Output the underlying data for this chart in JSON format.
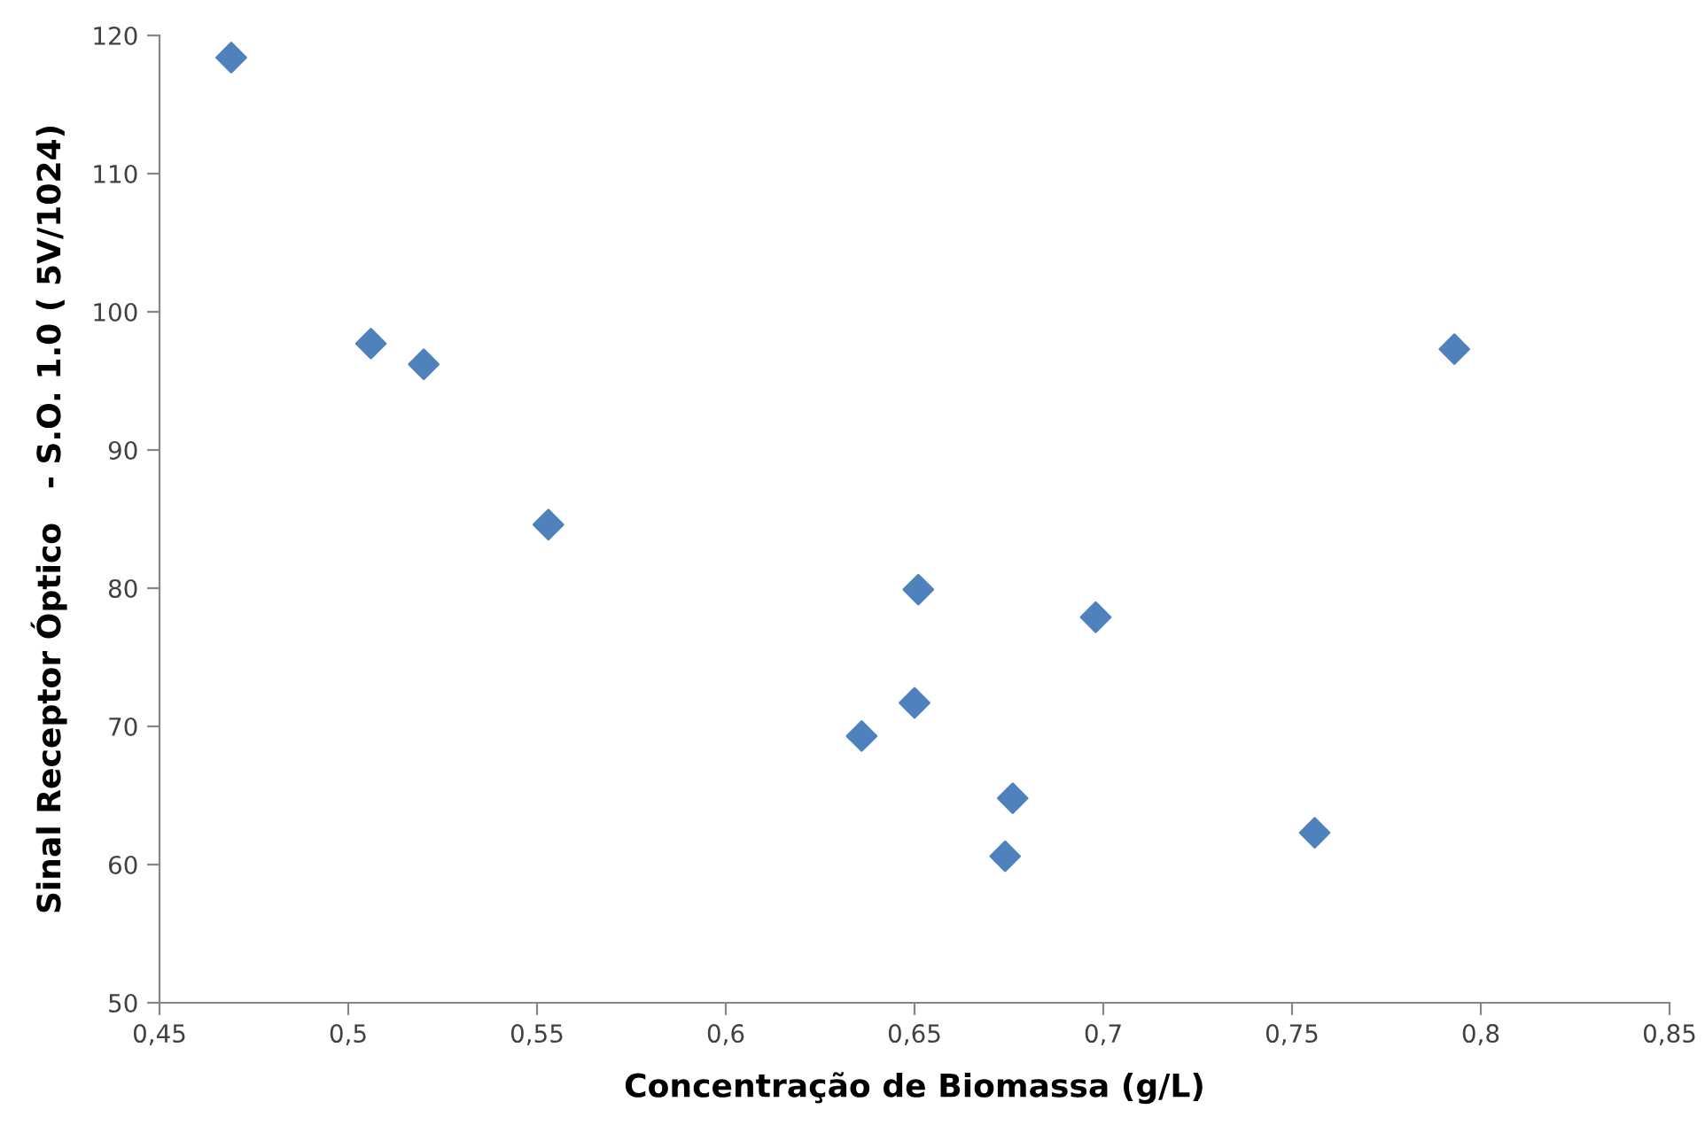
{
  "chart_data": {
    "type": "scatter",
    "xlabel": "Concentração de Biomassa (g/L)",
    "ylabel": "Sinal Receptor Óptico   - S.O. 1.0 ( 5V/1024)",
    "x": [
      0.469,
      0.506,
      0.52,
      0.553,
      0.651,
      0.698,
      0.65,
      0.636,
      0.676,
      0.674,
      0.756,
      0.793
    ],
    "series": [
      {
        "color": "#4f81bd",
        "values": [
          118.4,
          97.7,
          96.2,
          84.6,
          79.9,
          77.9,
          71.7,
          69.3,
          64.8,
          60.6,
          62.3,
          97.3
        ]
      }
    ],
    "xlim": [
      0.45,
      0.85
    ],
    "xticks": [
      {
        "value": 0.45,
        "label": "0,45"
      },
      {
        "value": 0.5,
        "label": "0,5"
      },
      {
        "value": 0.55,
        "label": "0,55"
      },
      {
        "value": 0.6,
        "label": "0,6"
      },
      {
        "value": 0.65,
        "label": "0,65"
      },
      {
        "value": 0.7,
        "label": "0,7"
      },
      {
        "value": 0.75,
        "label": "0,75"
      },
      {
        "value": 0.8,
        "label": "0,8"
      },
      {
        "value": 0.85,
        "label": "0,85"
      }
    ],
    "ylim": [
      50,
      120
    ],
    "yticks": [
      50,
      60,
      70,
      80,
      90,
      100,
      110,
      120
    ],
    "grid": false,
    "marker": "diamond"
  }
}
